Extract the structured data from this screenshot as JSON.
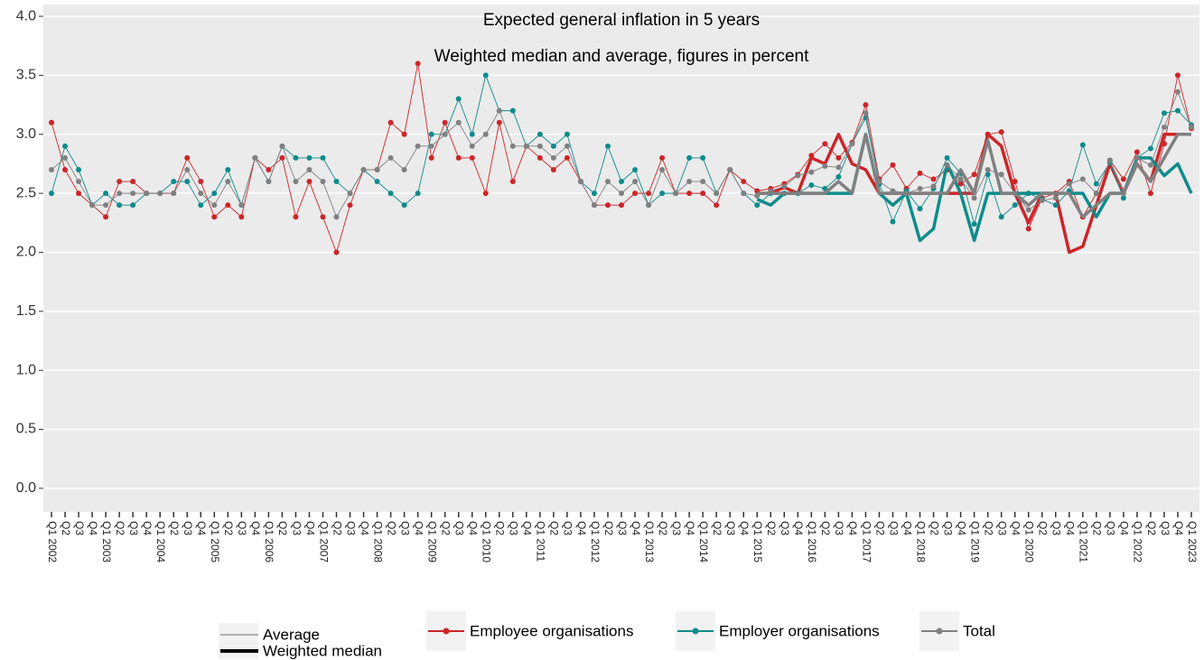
{
  "chart_data": {
    "type": "line",
    "title": "Expected general inflation in 5 years",
    "subtitle": "Weighted median and average, figures in percent",
    "categories": [
      "Q1 2002",
      "Q2",
      "Q3",
      "Q4",
      "Q1 2003",
      "Q2",
      "Q3",
      "Q4",
      "Q1 2004",
      "Q2",
      "Q3",
      "Q4",
      "Q1 2005",
      "Q2",
      "Q3",
      "Q4",
      "Q1 2006",
      "Q2",
      "Q3",
      "Q4",
      "Q1 2007",
      "Q2",
      "Q3",
      "Q4",
      "Q1 2008",
      "Q2",
      "Q3",
      "Q4",
      "Q1 2009",
      "Q2",
      "Q3",
      "Q4",
      "Q1 2010",
      "Q2",
      "Q3",
      "Q4",
      "Q1 2011",
      "Q2",
      "Q3",
      "Q4",
      "Q1 2012",
      "Q2",
      "Q3",
      "Q4",
      "Q1 2013",
      "Q2",
      "Q3",
      "Q4",
      "Q1 2014",
      "Q2",
      "Q3",
      "Q4",
      "Q1 2015",
      "Q2",
      "Q3",
      "Q4",
      "Q1 2016",
      "Q2",
      "Q3",
      "Q4",
      "Q1 2017",
      "Q2",
      "Q3",
      "Q4",
      "Q1 2018",
      "Q2",
      "Q3",
      "Q4",
      "Q1 2019",
      "Q2",
      "Q3",
      "Q4",
      "Q1 2020",
      "Q2",
      "Q3",
      "Q4",
      "Q1 2021",
      "Q2",
      "Q3",
      "Q4",
      "Q1 2022",
      "Q2",
      "Q3",
      "Q4",
      "Q1 2023"
    ],
    "line_styles": [
      "Average",
      "Weighted median"
    ],
    "series": [
      {
        "name": "Employee organisations",
        "color": "#cc2529",
        "values": [
          3.1,
          2.7,
          2.5,
          2.4,
          2.3,
          2.6,
          2.6,
          2.5,
          2.5,
          2.5,
          2.8,
          2.6,
          2.3,
          2.4,
          2.3,
          2.8,
          2.7,
          2.8,
          2.3,
          2.6,
          2.3,
          2.0,
          2.4,
          2.7,
          2.7,
          3.1,
          3.0,
          3.6,
          2.8,
          3.1,
          2.8,
          2.8,
          2.5,
          3.1,
          2.6,
          2.9,
          2.8,
          2.7,
          2.8,
          2.6,
          2.4,
          2.4,
          2.4,
          2.5,
          2.5,
          2.8,
          2.5,
          2.5,
          2.5,
          2.4,
          2.7,
          2.6,
          2.52,
          2.54,
          2.58,
          2.66,
          2.82,
          2.92,
          2.8,
          2.93,
          3.25,
          2.62,
          2.74,
          2.54,
          2.67,
          2.62,
          2.7,
          2.58,
          2.66,
          3.0,
          3.02,
          2.6,
          2.2,
          2.46,
          2.5,
          2.6,
          2.3,
          2.5,
          2.78,
          2.62,
          2.85,
          2.5,
          2.92,
          3.5,
          3.05
        ],
        "median": [
          null,
          null,
          null,
          null,
          null,
          null,
          null,
          null,
          null,
          null,
          null,
          null,
          null,
          null,
          null,
          null,
          null,
          null,
          null,
          null,
          null,
          null,
          null,
          null,
          null,
          null,
          null,
          null,
          null,
          null,
          null,
          null,
          null,
          null,
          null,
          null,
          null,
          null,
          null,
          null,
          null,
          null,
          null,
          null,
          null,
          null,
          null,
          null,
          null,
          null,
          null,
          null,
          2.5,
          2.5,
          2.55,
          2.5,
          2.8,
          2.75,
          3.0,
          2.75,
          2.7,
          2.5,
          2.5,
          2.5,
          2.5,
          2.5,
          2.5,
          2.5,
          2.5,
          3.0,
          2.9,
          2.5,
          2.25,
          2.5,
          2.5,
          2.0,
          2.05,
          2.4,
          2.75,
          2.5,
          2.75,
          2.6,
          3.0,
          3.0,
          3.0
        ]
      },
      {
        "name": "Employer organisations",
        "color": "#0e8b8b",
        "values": [
          2.5,
          2.9,
          2.7,
          2.4,
          2.5,
          2.4,
          2.4,
          2.5,
          2.5,
          2.6,
          2.6,
          2.4,
          2.5,
          2.7,
          2.4,
          2.8,
          2.6,
          2.9,
          2.8,
          2.8,
          2.8,
          2.6,
          2.5,
          2.7,
          2.6,
          2.5,
          2.4,
          2.5,
          3.0,
          3.0,
          3.3,
          3.0,
          3.5,
          3.2,
          3.2,
          2.9,
          3.0,
          2.9,
          3.0,
          2.6,
          2.5,
          2.9,
          2.6,
          2.7,
          2.4,
          2.5,
          2.5,
          2.8,
          2.8,
          2.5,
          2.7,
          2.5,
          2.4,
          2.5,
          2.5,
          2.5,
          2.57,
          2.54,
          2.64,
          2.92,
          3.14,
          2.58,
          2.26,
          2.52,
          2.37,
          2.54,
          2.8,
          2.67,
          2.24,
          2.66,
          2.3,
          2.4,
          2.5,
          2.45,
          2.4,
          2.52,
          2.91,
          2.58,
          2.76,
          2.46,
          2.8,
          2.88,
          3.18,
          3.2,
          3.08
        ],
        "median": [
          null,
          null,
          null,
          null,
          null,
          null,
          null,
          null,
          null,
          null,
          null,
          null,
          null,
          null,
          null,
          null,
          null,
          null,
          null,
          null,
          null,
          null,
          null,
          null,
          null,
          null,
          null,
          null,
          null,
          null,
          null,
          null,
          null,
          null,
          null,
          null,
          null,
          null,
          null,
          null,
          null,
          null,
          null,
          null,
          null,
          null,
          null,
          null,
          null,
          null,
          null,
          null,
          2.45,
          2.4,
          2.5,
          2.5,
          2.5,
          2.5,
          2.5,
          2.5,
          3.0,
          2.5,
          2.4,
          2.5,
          2.1,
          2.2,
          2.75,
          2.5,
          2.1,
          2.5,
          2.5,
          2.5,
          2.5,
          2.5,
          2.5,
          2.5,
          2.5,
          2.3,
          2.5,
          2.5,
          2.8,
          2.8,
          2.65,
          2.75,
          2.5
        ]
      },
      {
        "name": "Total",
        "color": "#808080",
        "values": [
          2.7,
          2.8,
          2.6,
          2.4,
          2.4,
          2.5,
          2.5,
          2.5,
          2.5,
          2.5,
          2.7,
          2.5,
          2.4,
          2.6,
          2.4,
          2.8,
          2.6,
          2.9,
          2.6,
          2.7,
          2.6,
          2.3,
          2.5,
          2.7,
          2.7,
          2.8,
          2.7,
          2.9,
          2.9,
          3.0,
          3.1,
          2.9,
          3.0,
          3.2,
          2.9,
          2.9,
          2.9,
          2.8,
          2.9,
          2.6,
          2.4,
          2.6,
          2.5,
          2.6,
          2.4,
          2.7,
          2.5,
          2.6,
          2.6,
          2.5,
          2.7,
          2.5,
          2.48,
          2.52,
          2.56,
          2.65,
          2.68,
          2.73,
          2.72,
          2.92,
          3.18,
          2.6,
          2.52,
          2.5,
          2.54,
          2.56,
          2.74,
          2.62,
          2.46,
          2.7,
          2.66,
          2.5,
          2.36,
          2.44,
          2.46,
          2.58,
          2.62,
          2.5,
          2.78,
          2.5,
          2.8,
          2.74,
          3.06,
          3.36,
          3.06
        ],
        "median": [
          null,
          null,
          null,
          null,
          null,
          null,
          null,
          null,
          null,
          null,
          null,
          null,
          null,
          null,
          null,
          null,
          null,
          null,
          null,
          null,
          null,
          null,
          null,
          null,
          null,
          null,
          null,
          null,
          null,
          null,
          null,
          null,
          null,
          null,
          null,
          null,
          null,
          null,
          null,
          null,
          null,
          null,
          null,
          null,
          null,
          null,
          null,
          null,
          null,
          null,
          null,
          null,
          2.5,
          2.5,
          2.5,
          2.5,
          2.5,
          2.5,
          2.6,
          2.5,
          3.0,
          2.5,
          2.5,
          2.5,
          2.5,
          2.5,
          2.5,
          2.7,
          2.5,
          2.95,
          2.5,
          2.5,
          2.4,
          2.5,
          2.5,
          2.5,
          2.3,
          2.4,
          2.5,
          2.5,
          2.75,
          2.6,
          2.8,
          3.0,
          3.0
        ]
      }
    ],
    "ylim": [
      -0.2,
      4.1
    ],
    "yticks": [
      {
        "value": 0,
        "label": "0.0"
      },
      0.5,
      {
        "value": 1,
        "label": "1.0"
      },
      1.5,
      {
        "value": 2,
        "label": "2.0"
      },
      2.5,
      {
        "value": 3,
        "label": "3.0"
      },
      3.5,
      {
        "value": 4,
        "label": "4.0"
      }
    ],
    "grid": true
  }
}
